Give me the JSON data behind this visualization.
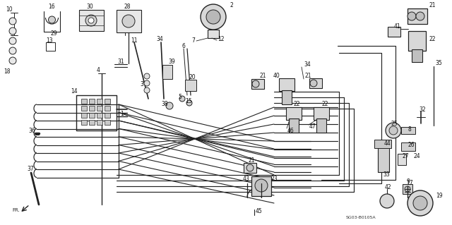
{
  "background_color": "#ffffff",
  "diagram_code": "SG03-B0105A",
  "fig_width": 6.4,
  "fig_height": 3.19,
  "dpi": 100,
  "lc": "#222222",
  "fs": 5.5
}
